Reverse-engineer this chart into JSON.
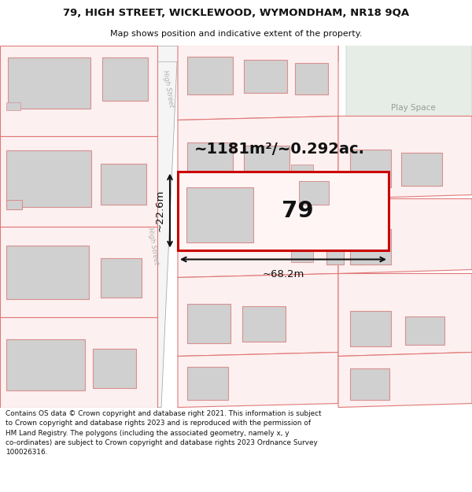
{
  "title_line1": "79, HIGH STREET, WICKLEWOOD, WYMONDHAM, NR18 9QA",
  "title_line2": "Map shows position and indicative extent of the property.",
  "footer_text": "Contains OS data © Crown copyright and database right 2021. This information is subject\nto Crown copyright and database rights 2023 and is reproduced with the permission of\nHM Land Registry. The polygons (including the associated geometry, namely x, y\nco-ordinates) are subject to Crown copyright and database rights 2023 Ordnance Survey\n100026316.",
  "area_label": "~1181m²/~0.292ac.",
  "house_number": "79",
  "dim_width": "~68.2m",
  "dim_height": "~22.6m",
  "street_label": "High Street",
  "play_space_label": "Play Space",
  "bg": "#ffffff",
  "parcel_fill": "#fdf0f0",
  "parcel_edge": "#e07878",
  "building_fill": "#d0d0d0",
  "building_edge": "#d89090",
  "plot_edge": "#cc0000",
  "road_fill": "#f5f5f5",
  "road_edge": "#aaaaaa",
  "green_fill": "#e6ede6",
  "green_edge": "#bbccbb",
  "dim_color": "#111111",
  "text_color": "#111111",
  "street_text_color": "#b0b0b0",
  "play_text_color": "#999999"
}
